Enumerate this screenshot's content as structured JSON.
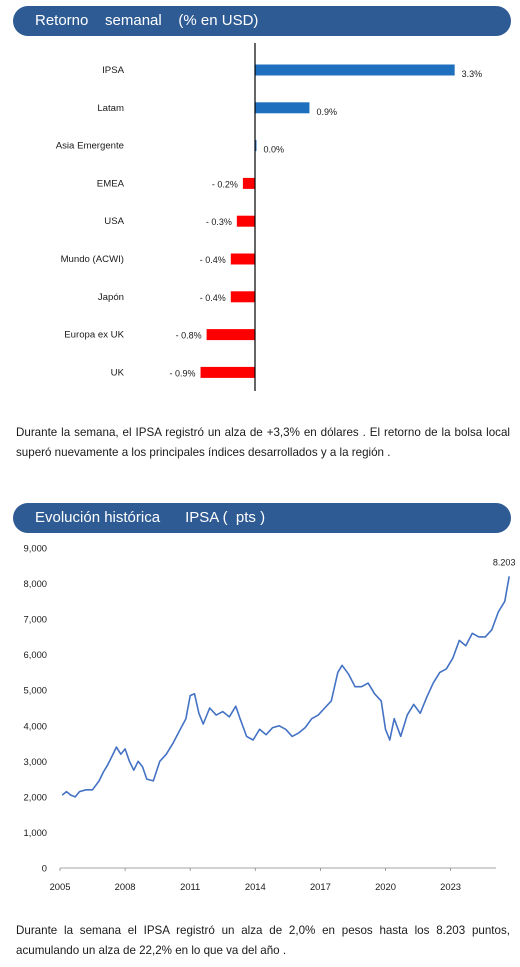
{
  "section1": {
    "header": "Retorno    semanal    (% en USD)",
    "paragraph": "Durante la semana, el IPSA registró un alza de +3,3% en dólares . El retorno de la bolsa local superó nuevamente a los principales índices desarrollados y a la región ."
  },
  "section2": {
    "header": "Evolución histórica      IPSA (  pts )",
    "paragraph": "Durante la semana el IPSA registró un alza de 2,0% en pesos hasta los 8.203 puntos, acumulando un alza de 22,2% en lo que va del año ."
  },
  "colors": {
    "header_bg": "#2e5b94",
    "positive": "#1f6fbf",
    "negative": "#ff0000",
    "line": "#4472c4"
  },
  "chart_data": [
    {
      "type": "bar",
      "orientation": "horizontal",
      "categories": [
        "IPSA",
        "Latam",
        "Asia Emergente",
        "EMEA",
        "USA",
        "Mundo (ACWI)",
        "Japón",
        "Europa ex UK",
        "UK"
      ],
      "values": [
        3.3,
        0.9,
        0.0,
        -0.2,
        -0.3,
        -0.4,
        -0.4,
        -0.8,
        -0.9
      ],
      "labels": [
        "3.3%",
        "0.9%",
        "0.0%",
        "- 0.2%",
        "- 0.3%",
        "- 0.4%",
        "- 0.4%",
        "- 0.8%",
        "- 0.9%"
      ],
      "xlim": [
        -1.55,
        3.5
      ],
      "title": "",
      "grid": false
    },
    {
      "type": "line",
      "title": "",
      "ylim": [
        0,
        9000
      ],
      "yticks": [
        "9,000",
        "8,000",
        "7,000",
        "6,000",
        "5,000",
        "4,000",
        "3,000",
        "2,000",
        "1,000",
        "0"
      ],
      "ytick_values": [
        9000,
        8000,
        7000,
        6000,
        5000,
        4000,
        3000,
        2000,
        1000,
        0
      ],
      "xticks": [
        "2005",
        "2008",
        "2011",
        "2014",
        "2017",
        "2020",
        "2023"
      ],
      "xtick_values": [
        2005,
        2008,
        2011,
        2014,
        2017,
        2020,
        2023
      ],
      "xlim": [
        2005,
        2025.8
      ],
      "last_label": "8.203",
      "series": [
        {
          "x": [
            2005.1,
            2005.3,
            2005.5,
            2005.7,
            2005.9,
            2006.2,
            2006.5,
            2006.8,
            2007.0,
            2007.2,
            2007.4,
            2007.6,
            2007.8,
            2008.0,
            2008.2,
            2008.4,
            2008.6,
            2008.8,
            2009.0,
            2009.3,
            2009.6,
            2009.9,
            2010.2,
            2010.5,
            2010.8,
            2011.0,
            2011.2,
            2011.4,
            2011.6,
            2011.9,
            2012.2,
            2012.5,
            2012.8,
            2013.1,
            2013.3,
            2013.6,
            2013.9,
            2014.2,
            2014.5,
            2014.8,
            2015.1,
            2015.4,
            2015.7,
            2016.0,
            2016.3,
            2016.6,
            2016.9,
            2017.2,
            2017.5,
            2017.8,
            2018.0,
            2018.3,
            2018.6,
            2018.9,
            2019.2,
            2019.5,
            2019.8,
            2020.0,
            2020.2,
            2020.4,
            2020.7,
            2021.0,
            2021.3,
            2021.6,
            2021.9,
            2022.2,
            2022.5,
            2022.8,
            2023.1,
            2023.4,
            2023.7,
            2024.0,
            2024.3,
            2024.6,
            2024.9,
            2025.2,
            2025.5,
            2025.7
          ],
          "y": [
            2050,
            2150,
            2050,
            2000,
            2150,
            2200,
            2200,
            2450,
            2700,
            2900,
            3150,
            3400,
            3200,
            3350,
            3000,
            2750,
            3000,
            2850,
            2500,
            2450,
            3000,
            3200,
            3500,
            3850,
            4200,
            4850,
            4900,
            4350,
            4050,
            4500,
            4300,
            4400,
            4250,
            4550,
            4200,
            3700,
            3600,
            3900,
            3750,
            3950,
            4000,
            3900,
            3700,
            3800,
            3950,
            4200,
            4300,
            4500,
            4700,
            5500,
            5700,
            5450,
            5100,
            5100,
            5200,
            4900,
            4700,
            3900,
            3600,
            4200,
            3700,
            4300,
            4600,
            4350,
            4800,
            5200,
            5500,
            5600,
            5900,
            6400,
            6250,
            6600,
            6500,
            6500,
            6700,
            7200,
            7500,
            8203
          ]
        }
      ]
    }
  ]
}
